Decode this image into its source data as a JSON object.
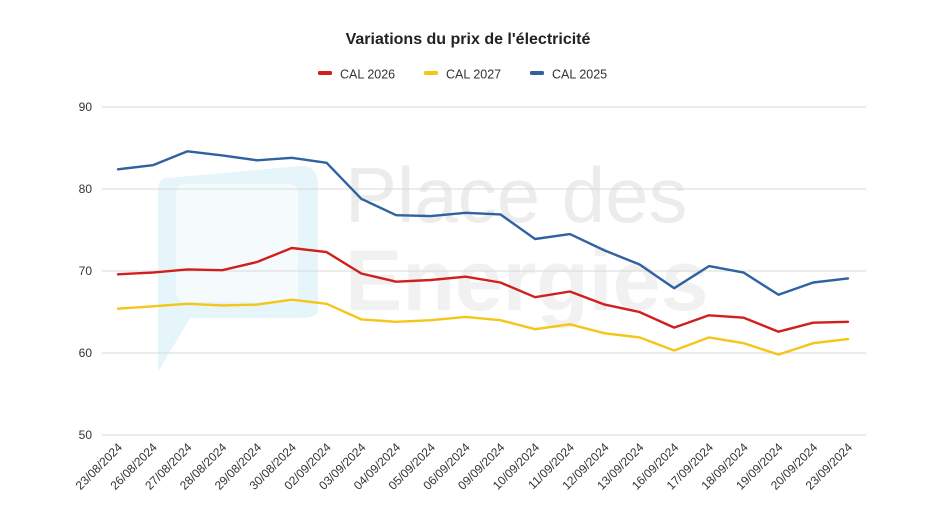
{
  "chart_data": {
    "type": "line",
    "title": "Variations du prix de l'électricité",
    "watermark": {
      "line1": "Place des",
      "line2": "Energies",
      "color": "#e3f3f7"
    },
    "xlabel": "",
    "ylabel": "",
    "ylim": [
      50,
      90
    ],
    "yticks": [
      50,
      60,
      70,
      80,
      90
    ],
    "grid": true,
    "legend_position": "top",
    "categories": [
      "23/08/2024",
      "26/08/2024",
      "27/08/2024",
      "28/08/2024",
      "29/08/2024",
      "30/08/2024",
      "02/09/2024",
      "03/09/2024",
      "04/09/2024",
      "05/09/2024",
      "06/09/2024",
      "09/09/2024",
      "10/09/2024",
      "11/09/2024",
      "12/09/2024",
      "13/09/2024",
      "16/09/2024",
      "17/09/2024",
      "18/09/2024",
      "19/09/2024",
      "20/09/2024",
      "23/09/2024"
    ],
    "series": [
      {
        "name": "CAL 2026",
        "color": "#d0201e",
        "values": [
          69.6,
          69.8,
          70.2,
          70.1,
          71.1,
          72.8,
          72.3,
          69.7,
          68.7,
          68.9,
          69.3,
          68.6,
          66.8,
          67.5,
          65.9,
          65.0,
          63.1,
          64.6,
          64.3,
          62.6,
          63.7,
          63.8
        ]
      },
      {
        "name": "CAL 2027",
        "color": "#f5c518",
        "values": [
          65.4,
          65.7,
          66.0,
          65.8,
          65.9,
          66.5,
          66.0,
          64.1,
          63.8,
          64.0,
          64.4,
          64.0,
          62.9,
          63.5,
          62.4,
          61.9,
          60.3,
          61.9,
          61.2,
          59.8,
          61.2,
          61.7
        ]
      },
      {
        "name": "CAL 2025",
        "color": "#2f62a1",
        "values": [
          82.4,
          82.9,
          84.6,
          84.1,
          83.5,
          83.8,
          83.2,
          78.8,
          76.8,
          76.7,
          77.1,
          76.9,
          73.9,
          74.5,
          72.5,
          70.8,
          67.9,
          70.6,
          69.8,
          67.1,
          68.6,
          69.1
        ]
      }
    ]
  }
}
